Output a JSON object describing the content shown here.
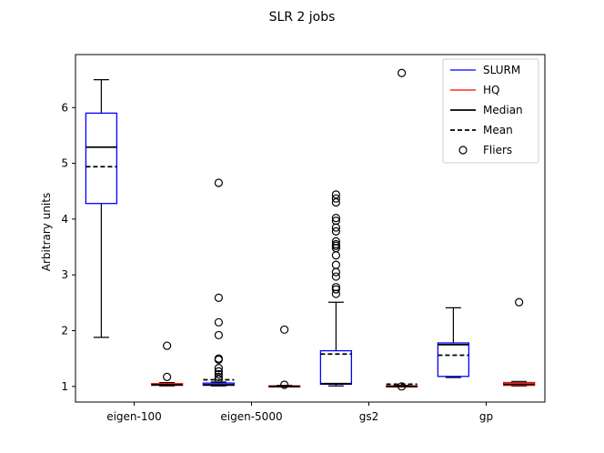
{
  "chart_data": {
    "type": "boxplot",
    "title": "SLR 2 jobs",
    "xlabel": "",
    "ylabel": "Arbitrary units",
    "ylim": [
      0.72,
      6.95
    ],
    "yticks": [
      1,
      2,
      3,
      4,
      5,
      6
    ],
    "categories": [
      "eigen-100",
      "eigen-5000",
      "gs2",
      "gp"
    ],
    "grid": false,
    "legend_position": "top-right",
    "legend": [
      {
        "label": "SLURM",
        "kind": "line",
        "color": "#0000ff",
        "dash": "solid"
      },
      {
        "label": "HQ",
        "kind": "line",
        "color": "#ff0000",
        "dash": "solid"
      },
      {
        "label": "Median",
        "kind": "line",
        "color": "#000000",
        "dash": "solid"
      },
      {
        "label": "Mean",
        "kind": "line",
        "color": "#000000",
        "dash": "dashed"
      },
      {
        "label": "Fliers",
        "kind": "marker",
        "color": "#000000",
        "dash": "none"
      }
    ],
    "series": [
      {
        "name": "SLURM",
        "color": "#0000ff",
        "boxes": [
          {
            "category": "eigen-100",
            "q1": 4.28,
            "q3": 5.9,
            "median": 5.29,
            "mean": 4.94,
            "whisker_low": 1.88,
            "whisker_high": 6.5,
            "fliers": []
          },
          {
            "category": "eigen-5000",
            "q1": 1.02,
            "q3": 1.06,
            "median": 1.03,
            "mean": 1.12,
            "whisker_low": 1.01,
            "whisker_high": 1.08,
            "fliers": [
              1.13,
              1.17,
              1.22,
              1.27,
              1.33,
              1.48,
              1.5,
              1.92,
              2.15,
              2.59,
              4.65
            ]
          },
          {
            "category": "gs2",
            "q1": 1.04,
            "q3": 1.64,
            "median": 1.05,
            "mean": 1.58,
            "whisker_low": 1.01,
            "whisker_high": 2.51,
            "fliers": [
              2.66,
              2.74,
              2.78,
              2.97,
              3.05,
              3.18,
              3.35,
              3.48,
              3.52,
              3.55,
              3.6,
              3.78,
              3.85,
              3.97,
              4.02,
              4.3,
              4.37,
              4.44
            ]
          },
          {
            "category": "gp",
            "q1": 1.18,
            "q3": 1.78,
            "median": 1.75,
            "mean": 1.56,
            "whisker_low": 1.16,
            "whisker_high": 2.41,
            "fliers": []
          }
        ]
      },
      {
        "name": "HQ",
        "color": "#ff0000",
        "boxes": [
          {
            "category": "eigen-100",
            "q1": 1.02,
            "q3": 1.05,
            "median": 1.03,
            "mean": 1.03,
            "whisker_low": 1.01,
            "whisker_high": 1.07,
            "fliers": [
              1.17,
              1.73
            ]
          },
          {
            "category": "eigen-5000",
            "q1": 1.0,
            "q3": 1.01,
            "median": 1.0,
            "mean": 1.0,
            "whisker_low": 1.0,
            "whisker_high": 1.02,
            "fliers": [
              1.03,
              2.02
            ]
          },
          {
            "category": "gs2",
            "q1": 1.0,
            "q3": 1.01,
            "median": 1.0,
            "mean": 1.04,
            "whisker_low": 1.0,
            "whisker_high": 1.02,
            "fliers": [
              1.0,
              6.62
            ]
          },
          {
            "category": "gp",
            "q1": 1.02,
            "q3": 1.07,
            "median": 1.04,
            "mean": 1.04,
            "whisker_low": 1.01,
            "whisker_high": 1.09,
            "fliers": [
              2.51
            ]
          }
        ]
      }
    ]
  }
}
